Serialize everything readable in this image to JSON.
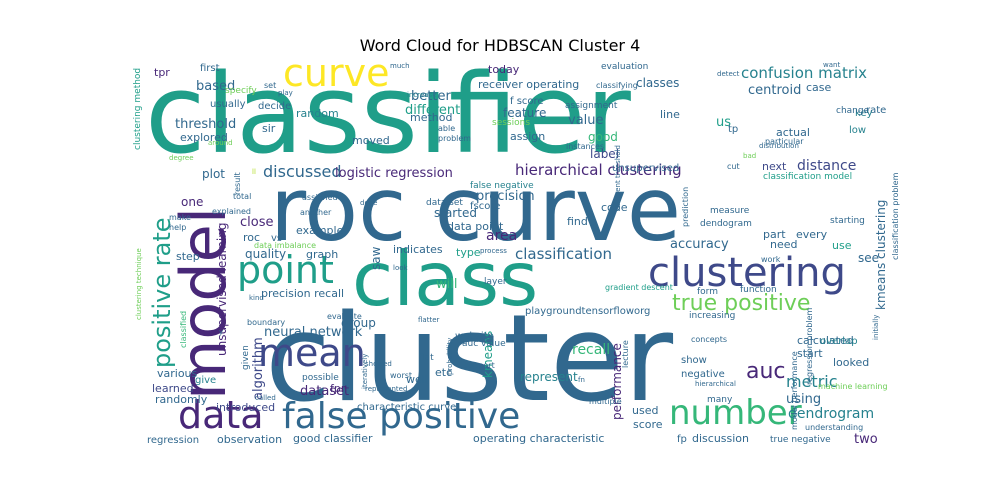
{
  "title": "Word Cloud for HDBSCAN Cluster 4",
  "palette": [
    "#440154",
    "#482878",
    "#3e4989",
    "#31688e",
    "#26828e",
    "#1f9e89",
    "#35b779",
    "#6ece58",
    "#b5de2b",
    "#fde725"
  ],
  "words": [
    {
      "text": "classifier",
      "weight": 1.0
    },
    {
      "text": "cluster",
      "weight": 1.0
    },
    {
      "text": "roc curve",
      "weight": 0.95
    },
    {
      "text": "class",
      "weight": 0.7
    },
    {
      "text": "model",
      "weight": 0.6
    },
    {
      "text": "clustering",
      "weight": 0.4
    },
    {
      "text": "point",
      "weight": 0.35
    },
    {
      "text": "curve",
      "weight": 0.35
    },
    {
      "text": "mean",
      "weight": 0.35
    },
    {
      "text": "data",
      "weight": 0.35
    },
    {
      "text": "false positive",
      "weight": 0.35
    },
    {
      "text": "number",
      "weight": 0.3
    },
    {
      "text": "positive rate",
      "weight": 0.25
    },
    {
      "text": "true positive",
      "weight": 0.22
    },
    {
      "text": "auc",
      "weight": 0.22
    },
    {
      "text": "confusion matrix",
      "weight": 0.15
    },
    {
      "text": "hierarchical clustering",
      "weight": 0.15
    },
    {
      "text": "classification",
      "weight": 0.15
    },
    {
      "text": "metric",
      "weight": 0.15
    },
    {
      "text": "dendrogram",
      "weight": 0.12
    },
    {
      "text": "discussed",
      "weight": 0.15
    },
    {
      "text": "logistic regression",
      "weight": 0.13
    },
    {
      "text": "threshold",
      "weight": 0.12
    },
    {
      "text": "centroid",
      "weight": 0.12
    },
    {
      "text": "precision",
      "weight": 0.12
    },
    {
      "text": "distance",
      "weight": 0.12
    },
    {
      "text": "kmeans clustering",
      "weight": 0.12
    },
    {
      "text": "area",
      "weight": 0.12
    },
    {
      "text": "accuracy",
      "weight": 0.12
    },
    {
      "text": "unsupervised learning",
      "weight": 0.11
    },
    {
      "text": "recall",
      "weight": 0.11
    },
    {
      "text": "dataset",
      "weight": 0.11
    },
    {
      "text": "neural network",
      "weight": 0.11
    },
    {
      "text": "algorithm",
      "weight": 0.11
    },
    {
      "text": "kmeans",
      "weight": 0.1
    },
    {
      "text": "will",
      "weight": 0.1
    },
    {
      "text": "value",
      "weight": 0.1
    },
    {
      "text": "based",
      "weight": 0.1
    },
    {
      "text": "better",
      "weight": 0.1
    },
    {
      "text": "different",
      "weight": 0.1
    },
    {
      "text": "label",
      "weight": 0.1
    },
    {
      "text": "good",
      "weight": 0.1
    },
    {
      "text": "us",
      "weight": 0.1
    },
    {
      "text": "two",
      "weight": 0.1
    },
    {
      "text": "using",
      "weight": 0.1
    },
    {
      "text": "performance",
      "weight": 0.1
    },
    {
      "text": "represent",
      "weight": 0.1
    },
    {
      "text": "classes",
      "weight": 0.09
    },
    {
      "text": "feature",
      "weight": 0.09
    },
    {
      "text": "plot",
      "weight": 0.09
    },
    {
      "text": "one",
      "weight": 0.09
    },
    {
      "text": "close",
      "weight": 0.09
    },
    {
      "text": "started",
      "weight": 0.09
    },
    {
      "text": "data point",
      "weight": 0.09
    },
    {
      "text": "quality",
      "weight": 0.09
    },
    {
      "text": "saw",
      "weight": 0.09
    },
    {
      "text": "precision recall",
      "weight": 0.09
    },
    {
      "text": "see",
      "weight": 0.08
    },
    {
      "text": "group",
      "weight": 0.08
    },
    {
      "text": "etc",
      "weight": 0.08
    },
    {
      "text": "fpr",
      "weight": 0.08
    },
    {
      "text": "various",
      "weight": 0.08
    },
    {
      "text": "learned",
      "weight": 0.08
    },
    {
      "text": "give",
      "weight": 0.08
    },
    {
      "text": "randomly",
      "weight": 0.08
    },
    {
      "text": "introduced",
      "weight": 0.08
    },
    {
      "text": "observation",
      "weight": 0.08
    },
    {
      "text": "good classifier",
      "weight": 0.08
    },
    {
      "text": "operating characteristic",
      "weight": 0.08
    },
    {
      "text": "discussion",
      "weight": 0.08
    },
    {
      "text": "tpr",
      "weight": 0.07
    },
    {
      "text": "today",
      "weight": 0.07
    },
    {
      "text": "receiver operating",
      "weight": 0.07
    },
    {
      "text": "random",
      "weight": 0.07
    },
    {
      "text": "explored",
      "weight": 0.07
    },
    {
      "text": "moved",
      "weight": 0.07
    },
    {
      "text": "assign",
      "weight": 0.07
    },
    {
      "text": "method",
      "weight": 0.07
    },
    {
      "text": "line",
      "weight": 0.07
    },
    {
      "text": "case",
      "weight": 0.07
    },
    {
      "text": "rate",
      "weight": 0.07
    },
    {
      "text": "key",
      "weight": 0.07
    },
    {
      "text": "low",
      "weight": 0.07
    },
    {
      "text": "actual",
      "weight": 0.07
    },
    {
      "text": "next",
      "weight": 0.07
    },
    {
      "text": "classification model",
      "weight": 0.06
    },
    {
      "text": "indicates",
      "weight": 0.07
    },
    {
      "text": "type",
      "weight": 0.07
    },
    {
      "text": "code",
      "weight": 0.07
    },
    {
      "text": "find",
      "weight": 0.07
    },
    {
      "text": "need",
      "weight": 0.07
    },
    {
      "text": "use",
      "weight": 0.07
    },
    {
      "text": "every",
      "weight": 0.07
    },
    {
      "text": "part",
      "weight": 0.07
    },
    {
      "text": "example",
      "weight": 0.06
    },
    {
      "text": "graph",
      "weight": 0.06
    },
    {
      "text": "step",
      "weight": 0.06
    },
    {
      "text": "roc",
      "weight": 0.07
    },
    {
      "text": "vs",
      "weight": 0.06
    },
    {
      "text": "sir",
      "weight": 0.07
    },
    {
      "text": "first",
      "weight": 0.06
    },
    {
      "text": "usually",
      "weight": 0.06
    },
    {
      "text": "decide",
      "weight": 0.06
    },
    {
      "text": "f score",
      "weight": 0.06
    },
    {
      "text": "fscore",
      "weight": 0.06
    },
    {
      "text": "data set",
      "weight": 0.06
    },
    {
      "text": "false negative",
      "weight": 0.06
    },
    {
      "text": "unsupervised",
      "weight": 0.06
    },
    {
      "text": "assignment",
      "weight": 0.06
    },
    {
      "text": "instances",
      "weight": 0.05
    },
    {
      "text": "tp",
      "weight": 0.06
    },
    {
      "text": "dendogram",
      "weight": 0.06
    },
    {
      "text": "measure",
      "weight": 0.06
    },
    {
      "text": "starting",
      "weight": 0.06
    },
    {
      "text": "calculated",
      "weight": 0.07
    },
    {
      "text": "start",
      "weight": 0.07
    },
    {
      "text": "looked",
      "weight": 0.07
    },
    {
      "text": "overlap",
      "weight": 0.06
    },
    {
      "text": "show",
      "weight": 0.07
    },
    {
      "text": "negative",
      "weight": 0.06
    },
    {
      "text": "score",
      "weight": 0.07
    },
    {
      "text": "used",
      "weight": 0.07
    },
    {
      "text": "many",
      "weight": 0.06
    },
    {
      "text": "true negative",
      "weight": 0.06
    },
    {
      "text": "understanding",
      "weight": 0.05
    },
    {
      "text": "fp",
      "weight": 0.06
    },
    {
      "text": "characteristic curve",
      "weight": 0.06
    },
    {
      "text": "website",
      "weight": 0.06
    },
    {
      "text": "auc value",
      "weight": 0.06
    },
    {
      "text": "playgroundtensorfloworg",
      "weight": 0.06
    },
    {
      "text": "flat",
      "weight": 0.06
    },
    {
      "text": "well",
      "weight": 0.07
    },
    {
      "text": "possible",
      "weight": 0.06
    },
    {
      "text": "increasing",
      "weight": 0.06
    },
    {
      "text": "function",
      "weight": 0.06
    },
    {
      "text": "form",
      "weight": 0.05
    },
    {
      "text": "layer",
      "weight": 0.05
    },
    {
      "text": "evaluate",
      "weight": 0.05
    },
    {
      "text": "worst",
      "weight": 0.05
    },
    {
      "text": "lecture",
      "weight": 0.05
    },
    {
      "text": "concepts",
      "weight": 0.05
    },
    {
      "text": "problem",
      "weight": 0.05
    },
    {
      "text": "able",
      "weight": 0.05
    },
    {
      "text": "sessions",
      "weight": 0.05
    },
    {
      "text": "prediction",
      "weight": 0.05
    },
    {
      "text": "clustering method",
      "weight": 0.05
    },
    {
      "text": "specify",
      "weight": 0.05
    },
    {
      "text": "set",
      "weight": 0.05
    },
    {
      "text": "play",
      "weight": 0.04
    },
    {
      "text": "much",
      "weight": 0.04
    },
    {
      "text": "evaluation",
      "weight": 0.05
    },
    {
      "text": "particular",
      "weight": 0.05
    },
    {
      "text": "change",
      "weight": 0.05
    },
    {
      "text": "want",
      "weight": 0.04
    },
    {
      "text": "detect",
      "weight": 0.04
    },
    {
      "text": "cut",
      "weight": 0.05
    },
    {
      "text": "distribution",
      "weight": 0.05
    },
    {
      "text": "degree",
      "weight": 0.04
    },
    {
      "text": "around",
      "weight": 0.04
    },
    {
      "text": "total",
      "weight": 0.05
    },
    {
      "text": "explained",
      "weight": 0.05
    },
    {
      "text": "make",
      "weight": 0.05
    },
    {
      "text": "help",
      "weight": 0.05
    },
    {
      "text": "result",
      "weight": 0.05
    },
    {
      "text": "assigned",
      "weight": 0.05
    },
    {
      "text": "another",
      "weight": 0.05
    },
    {
      "text": "done",
      "weight": 0.04
    },
    {
      "text": "data imbalance",
      "weight": 0.05
    },
    {
      "text": "process",
      "weight": 0.04
    },
    {
      "text": "gradient descent",
      "weight": 0.05
    },
    {
      "text": "work",
      "weight": 0.05
    },
    {
      "text": "kind",
      "weight": 0.05
    },
    {
      "text": "boundary",
      "weight": 0.05
    },
    {
      "text": "classified",
      "weight": 0.06
    },
    {
      "text": "given",
      "weight": 0.06
    },
    {
      "text": "machine learning",
      "weight": 0.05
    },
    {
      "text": "support",
      "weight": 0.05
    },
    {
      "text": "multiple",
      "weight": 0.05
    },
    {
      "text": "hierarchical",
      "weight": 0.05
    },
    {
      "text": "represented",
      "weight": 0.05
    },
    {
      "text": "called",
      "weight": 0.05
    },
    {
      "text": "showed",
      "weight": 0.05
    },
    {
      "text": "iteratively",
      "weight": 0.04
    },
    {
      "text": "probability",
      "weight": 0.05
    },
    {
      "text": "regression",
      "weight": 0.07
    },
    {
      "text": "model performance",
      "weight": 0.05
    },
    {
      "text": "regression problem",
      "weight": 0.05
    },
    {
      "text": "classification problem",
      "weight": 0.05
    },
    {
      "text": "different threshold",
      "weight": 0.04
    },
    {
      "text": "clustering technique",
      "weight": 0.04
    },
    {
      "text": "initially",
      "weight": 0.04
    },
    {
      "text": "flatter",
      "weight": 0.05
    },
    {
      "text": "increase",
      "weight": 0.04
    },
    {
      "text": "classifying",
      "weight": 0.05
    },
    {
      "text": "fn",
      "weight": 0.04
    },
    {
      "text": "look",
      "weight": 0.04
    },
    {
      "text": "help",
      "weight": 0.04
    },
    {
      "text": "bad",
      "weight": 0.04
    },
    {
      "text": "ll",
      "weight": 0.04
    },
    {
      "text": "y",
      "weight": 0.04
    }
  ]
}
